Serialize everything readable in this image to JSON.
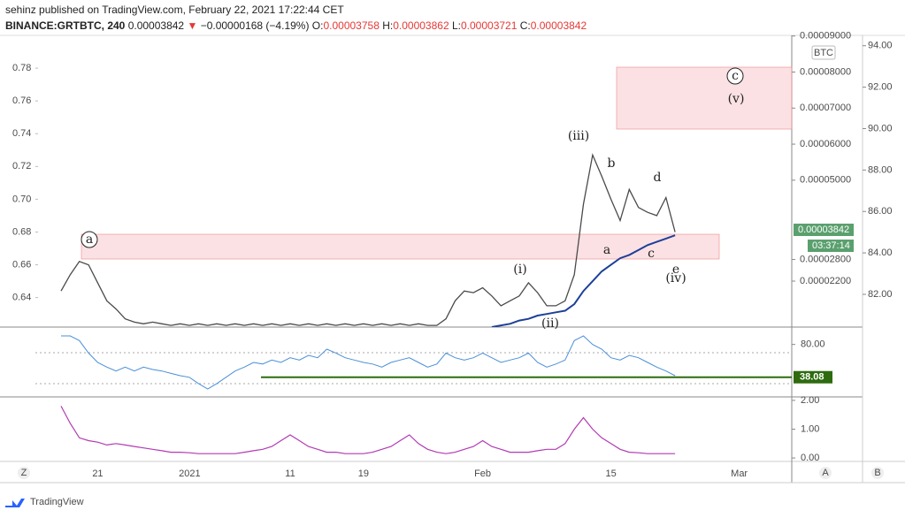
{
  "header": {
    "author_line": "sehinz published on TradingView.com, February 22, 2021 17:22:44 CET",
    "symbol": "BINANCE:GRTBTC, 240",
    "last": "0.00003842",
    "arrow": "▼",
    "change": "−0.00000168 (−4.19%)",
    "o_label": "O:",
    "o": "0.00003758",
    "h_label": "H:",
    "h": "0.00003862",
    "l_label": "L:",
    "l": "0.00003721",
    "c_label": "C:",
    "c": "0.00003842"
  },
  "price_pane": {
    "ylim": [
      0.622,
      0.8
    ],
    "yticks": [
      0.64,
      0.66,
      0.68,
      {
        "value": 0.7,
        "label": "0.70"
      },
      0.72,
      0.74,
      0.76,
      0.78
    ],
    "btc_unit": "BTC",
    "btc_ylim": [
      9.25e-06,
      9.018e-05
    ],
    "btc_ticks": [
      {
        "value": 9e-05,
        "label": "0.00009000"
      },
      {
        "value": 8e-05,
        "label": "0.00008000"
      },
      {
        "value": 7e-05,
        "label": "0.00007000"
      },
      {
        "value": 6e-05,
        "label": "0.00006000"
      },
      {
        "value": 5e-05,
        "label": "0.00005000"
      },
      {
        "value": 2.8e-05,
        "label": "0.00002800"
      },
      {
        "value": 2.2e-05,
        "label": "0.00002200"
      }
    ],
    "y2lim": [
      80.42,
      94.5
    ],
    "y2ticks": [
      {
        "value": 94,
        "label": "94.00"
      },
      {
        "value": 92,
        "label": "92.00"
      },
      {
        "value": 90,
        "label": "90.00"
      },
      {
        "value": 88,
        "label": "88.00"
      },
      {
        "value": 86,
        "label": "86.00"
      },
      {
        "value": 84,
        "label": "84.00"
      },
      {
        "value": 82,
        "label": "82.00"
      }
    ],
    "price": [
      0.644,
      0.654,
      0.662,
      0.66,
      0.649,
      0.638,
      0.633,
      0.627,
      0.625,
      0.624,
      0.625,
      0.624,
      0.623,
      0.624,
      0.623,
      0.624,
      0.623,
      0.624,
      0.623,
      0.624,
      0.623,
      0.624,
      0.623,
      0.624,
      0.623,
      0.624,
      0.623,
      0.624,
      0.623,
      0.624,
      0.623,
      0.624,
      0.623,
      0.624,
      0.623,
      0.624,
      0.623,
      0.624,
      0.623,
      0.624,
      0.623,
      0.623,
      0.627,
      0.638,
      0.644,
      0.643,
      0.646,
      0.641,
      0.635,
      0.638,
      0.641,
      0.649,
      0.643,
      0.635,
      0.635,
      0.638,
      0.654,
      0.697,
      0.727,
      0.714,
      0.7,
      0.687,
      0.706,
      0.695,
      0.692,
      0.69,
      0.701,
      0.68
    ],
    "ma": [
      null,
      null,
      null,
      null,
      null,
      null,
      null,
      null,
      null,
      null,
      null,
      null,
      null,
      null,
      null,
      null,
      null,
      null,
      null,
      null,
      null,
      null,
      null,
      null,
      null,
      null,
      null,
      null,
      null,
      null,
      null,
      null,
      null,
      null,
      null,
      null,
      null,
      null,
      null,
      null,
      null,
      null,
      null,
      null,
      null,
      null,
      null,
      0.622,
      0.623,
      0.624,
      0.626,
      0.627,
      0.629,
      0.63,
      0.631,
      0.632,
      0.636,
      0.644,
      0.65,
      0.656,
      0.66,
      0.664,
      0.666,
      0.669,
      0.672,
      0.674,
      0.676,
      0.678
    ],
    "last_price": "0.00003842",
    "countdown": "03:37:14",
    "waves": [
      "a",
      "(i)",
      "(ii)",
      "(iii)",
      "a",
      "b",
      "c",
      "d",
      "e",
      "(iv)",
      "c",
      "(v)"
    ]
  },
  "rsi_pane": {
    "ylim": [
      14,
      100
    ],
    "yticks": [
      {
        "value": 80,
        "label": "80.00"
      }
    ],
    "level": 38.08,
    "values": [
      91,
      91,
      85,
      69,
      57,
      51,
      46,
      51,
      46,
      51,
      48,
      46,
      43,
      40,
      38,
      30,
      23,
      30,
      38,
      46,
      51,
      57,
      55,
      60,
      57,
      63,
      60,
      66,
      63,
      74,
      69,
      63,
      60,
      57,
      55,
      51,
      57,
      60,
      63,
      57,
      51,
      55,
      69,
      63,
      60,
      63,
      69,
      63,
      57,
      60,
      63,
      69,
      57,
      51,
      55,
      60,
      85,
      91,
      80,
      74,
      63,
      60,
      66,
      63,
      57,
      51,
      46,
      40
    ]
  },
  "osc_pane": {
    "ylim": [
      -0.12,
      2.09
    ],
    "yticks": [
      {
        "value": 2,
        "label": "2.00"
      },
      {
        "value": 1,
        "label": "1.00"
      },
      {
        "value": 0,
        "label": "0.00"
      }
    ],
    "values": [
      1.8,
      1.2,
      0.7,
      0.6,
      0.55,
      0.45,
      0.5,
      0.45,
      0.4,
      0.35,
      0.3,
      0.25,
      0.2,
      0.2,
      0.18,
      0.15,
      0.15,
      0.15,
      0.15,
      0.15,
      0.2,
      0.25,
      0.3,
      0.4,
      0.6,
      0.8,
      0.6,
      0.4,
      0.3,
      0.2,
      0.2,
      0.15,
      0.15,
      0.15,
      0.2,
      0.3,
      0.4,
      0.6,
      0.8,
      0.5,
      0.3,
      0.2,
      0.15,
      0.2,
      0.3,
      0.4,
      0.6,
      0.4,
      0.3,
      0.2,
      0.2,
      0.2,
      0.25,
      0.3,
      0.3,
      0.5,
      1.0,
      1.4,
      1.0,
      0.7,
      0.5,
      0.3,
      0.2,
      0.18,
      0.15,
      0.15,
      0.15,
      0.15
    ]
  },
  "time_axis": [
    "21",
    "2021",
    "11",
    "19",
    "Feb",
    "15",
    "Mar"
  ],
  "footer": {
    "z": "Z",
    "a": "A",
    "b": "B",
    "logo": "TradingView"
  }
}
